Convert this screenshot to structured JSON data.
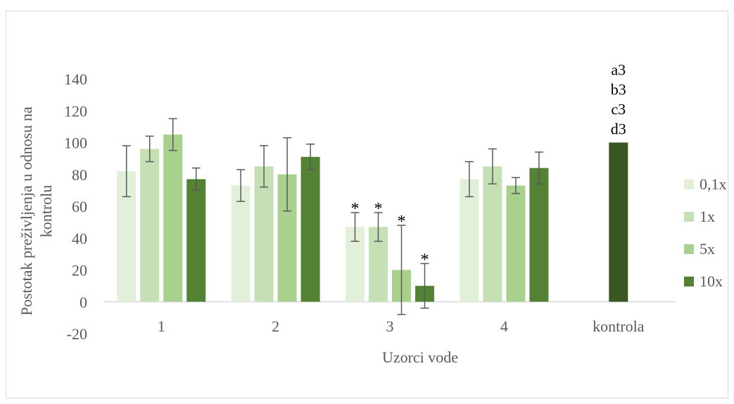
{
  "chart_data": {
    "type": "bar",
    "title": "",
    "xlabel": "Uzorci vode",
    "ylabel": "Postotak preživljenja u odnosu na kontrolu",
    "ylabel_lines": [
      "Postotak preživljenja u odnosu na",
      "kontrolu"
    ],
    "ylim": [
      -20,
      140
    ],
    "yticks": [
      140,
      120,
      100,
      80,
      60,
      40,
      20,
      0,
      -20
    ],
    "grid": false,
    "legend": "right",
    "categories": [
      "1",
      "2",
      "3",
      "4"
    ],
    "series": [
      {
        "name": "0,1x",
        "color": "#e2efd9",
        "values": [
          82,
          73,
          47,
          77
        ],
        "errors": [
          16,
          10,
          9,
          11
        ],
        "stars": [
          false,
          false,
          true,
          false
        ]
      },
      {
        "name": "1x",
        "color": "#c5e0b4",
        "values": [
          96,
          85,
          47,
          85
        ],
        "errors": [
          8,
          13,
          9,
          11
        ],
        "stars": [
          false,
          false,
          true,
          false
        ]
      },
      {
        "name": "5x",
        "color": "#a9d18e",
        "values": [
          105,
          80,
          20,
          73
        ],
        "errors": [
          10,
          23,
          28,
          5
        ],
        "stars": [
          false,
          false,
          true,
          false
        ]
      },
      {
        "name": "10x",
        "color": "#548235",
        "values": [
          77,
          91,
          10,
          84
        ],
        "errors": [
          7,
          8,
          14,
          10
        ],
        "stars": [
          false,
          false,
          true,
          false
        ]
      }
    ],
    "control": {
      "label": "kontrola",
      "value": 100,
      "color": "#385723",
      "annotation": [
        "a3",
        "b3",
        "c3",
        "d3"
      ]
    },
    "star_symbol": "*"
  }
}
